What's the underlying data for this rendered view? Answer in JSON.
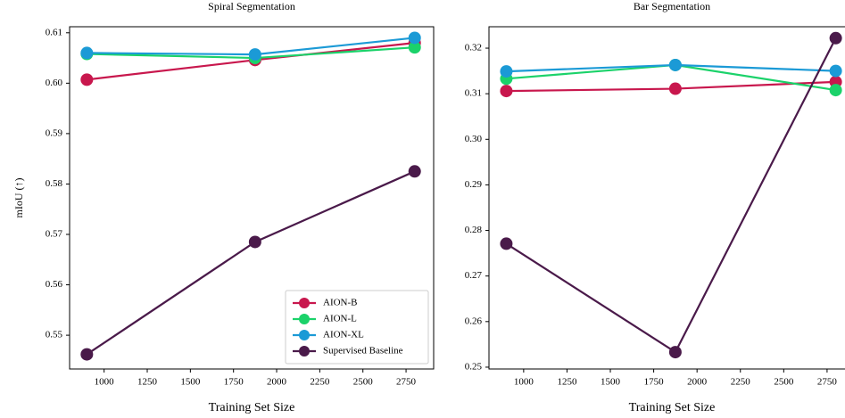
{
  "chart_data": [
    {
      "type": "line",
      "title": "Spiral Segmentation",
      "x_label": "Training Set Size",
      "y_label": "mIoU (↑)",
      "x": [
        900,
        1875,
        2800
      ],
      "xlim": [
        800,
        2910
      ],
      "xticks": [
        1000,
        1250,
        1500,
        1750,
        2000,
        2250,
        2500,
        2750
      ],
      "ylim": [
        0.5433,
        0.6112
      ],
      "yticks": [
        0.55,
        0.56,
        0.57,
        0.58,
        0.59,
        {
          "value": 0.6,
          "label": "0.60"
        },
        0.61
      ],
      "legend": "lower right",
      "series": [
        {
          "name": "AION-B",
          "color": "#c8174d",
          "values": [
            0.6007,
            0.6046,
            0.608
          ]
        },
        {
          "name": "AION-L",
          "color": "#1bd26a",
          "values": [
            0.6058,
            0.605,
            0.6071
          ]
        },
        {
          "name": "AION-XL",
          "color": "#1b9ad6",
          "values": [
            0.606,
            0.6057,
            0.609
          ]
        },
        {
          "name": "Supervised Baseline",
          "color": "#4a1a4a",
          "values": [
            0.5462,
            0.5685,
            0.5825
          ]
        }
      ]
    },
    {
      "type": "line",
      "title": "Bar Segmentation",
      "x_label": "Training Set Size",
      "x": [
        900,
        1875,
        2800
      ],
      "xlim": [
        800,
        2910
      ],
      "xticks": [
        1000,
        1250,
        1500,
        1750,
        2000,
        2250,
        2500,
        2750
      ],
      "ylim": [
        0.2496,
        0.3247
      ],
      "yticks": [
        0.25,
        0.26,
        0.27,
        0.28,
        0.29,
        {
          "value": 0.3,
          "label": "0.30"
        },
        0.31,
        0.32
      ],
      "series": [
        {
          "name": "AION-B",
          "color": "#c8174d",
          "values": [
            0.3106,
            0.3111,
            0.3126
          ]
        },
        {
          "name": "AION-L",
          "color": "#1bd26a",
          "values": [
            0.3133,
            0.3163,
            0.3108
          ]
        },
        {
          "name": "AION-XL",
          "color": "#1b9ad6",
          "values": [
            0.3149,
            0.3163,
            0.315
          ]
        },
        {
          "name": "Supervised Baseline",
          "color": "#4a1a4a",
          "values": [
            0.2771,
            0.2533,
            0.3222
          ]
        }
      ]
    }
  ]
}
